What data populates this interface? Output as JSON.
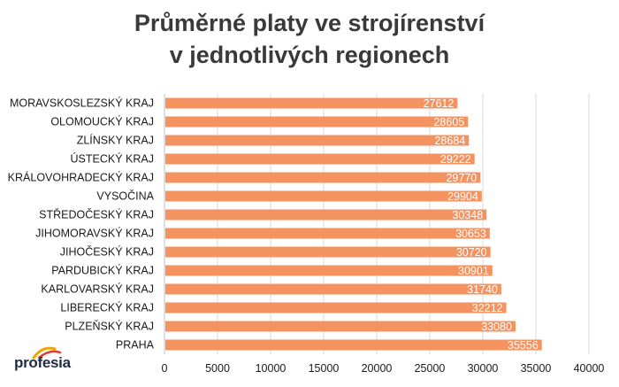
{
  "title_line1": "Průměrné platy ve strojírenství",
  "title_line2": "v jednotlivých regionech",
  "logo": {
    "text": "profesia"
  },
  "colors": {
    "bar": "#F4935F",
    "grid": "#D9D9D9",
    "axis": "#BFBFBF",
    "label": "#1a1a1a",
    "value_label": "#ffffff"
  },
  "chart_data": {
    "type": "bar",
    "orientation": "horizontal",
    "title": "Průměrné platy ve strojírenství v jednotlivých regionech",
    "categories": [
      "MORAVSKOSLEZSKÝ KRAJ",
      "OLOMOUCKÝ KRAJ",
      "ZLÍNSKY KRAJ",
      "ÚSTECKÝ KRAJ",
      "KRÁLOVOHRADECKÝ KRAJ",
      "VYSOČINA",
      "STŘEDOČESKÝ KRAJ",
      "JIHOMORAVSKÝ KRAJ",
      "JIHOČESKÝ KRAJ",
      "PARDUBICKÝ KRAJ",
      "KARLOVARSKÝ KRAJ",
      "LIBERECKÝ KRAJ",
      "PLZEŇSKÝ KRAJ",
      "PRAHA"
    ],
    "values": [
      27612,
      28605,
      28684,
      29222,
      29770,
      29904,
      30348,
      30653,
      30720,
      30901,
      31740,
      32212,
      33080,
      35556
    ],
    "xlim": [
      0,
      40000
    ],
    "xticks": [
      0,
      5000,
      10000,
      15000,
      20000,
      25000,
      30000,
      35000,
      40000
    ],
    "grid": true,
    "data_labels": true
  }
}
